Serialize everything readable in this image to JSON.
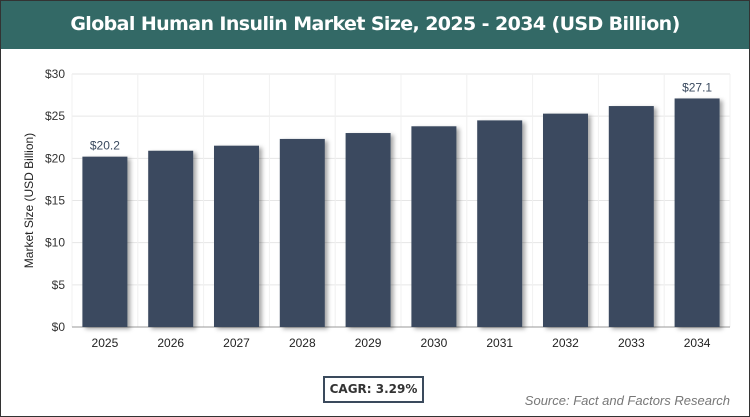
{
  "chart_data": {
    "type": "bar",
    "title": "Global Human Insulin Market Size, 2025 - 2034 (USD Billion)",
    "xlabel": "",
    "ylabel": "Market Size (USD Billion)",
    "categories": [
      "2025",
      "2026",
      "2027",
      "2028",
      "2029",
      "2030",
      "2031",
      "2032",
      "2033",
      "2034"
    ],
    "values": [
      20.2,
      20.9,
      21.5,
      22.3,
      23.0,
      23.8,
      24.5,
      25.3,
      26.2,
      27.1
    ],
    "data_labels": {
      "0": "$20.2",
      "9": "$27.1"
    },
    "ylim": [
      0,
      30
    ],
    "yticks": [
      "$0",
      "$5",
      "$10",
      "$15",
      "$20",
      "$25",
      "$30"
    ],
    "grid": true,
    "bar_color": "#3a4a5f"
  },
  "cagr": "CAGR: 3.29%",
  "source": "Source: Fact and Factors Research",
  "colors": {
    "title_bar": "#336966"
  }
}
